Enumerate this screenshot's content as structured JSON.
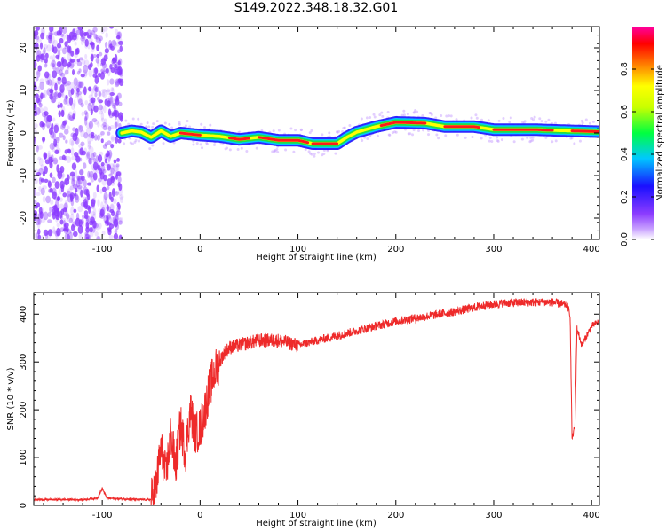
{
  "title": "S149.2022.348.18.32.G01",
  "colors": {
    "snr_line": "#ee2a2a",
    "spectrum_peak": "#ff1a1a",
    "spectrum_core": "#22e040",
    "spectrum_low": "#1a10ff",
    "noise": "#8c3cff",
    "axis": "#000000"
  },
  "chart_data": [
    {
      "type": "heatmap",
      "name": "spectrogram",
      "xlabel": "Height of straight line (km)",
      "ylabel": "Frequency (Hz)",
      "xlim": [
        -170,
        408
      ],
      "ylim": [
        -25,
        25
      ],
      "xticks": [
        -100,
        0,
        100,
        200,
        300,
        400
      ],
      "yticks": [
        -20,
        -10,
        0,
        10,
        20
      ],
      "colorbar": {
        "label": "Normalized spectral amplitude",
        "range": [
          0.0,
          1.0
        ],
        "ticks": [
          0.0,
          0.2,
          0.4,
          0.6,
          0.8
        ],
        "colormap": [
          "#ffffff",
          "#8c3cff",
          "#1a10ff",
          "#00c8ff",
          "#00ff40",
          "#c8ff00",
          "#ffff00",
          "#ff8000",
          "#ff0000",
          "#ff00a0"
        ]
      },
      "noise_region_x": [
        -170,
        -80
      ],
      "signal_track": {
        "x": [
          -80,
          -70,
          -60,
          -50,
          -40,
          -30,
          -20,
          0,
          20,
          40,
          60,
          80,
          100,
          115,
          140,
          150,
          160,
          180,
          200,
          230,
          250,
          280,
          300,
          340,
          380,
          408
        ],
        "freq": [
          0.0,
          0.5,
          0.2,
          -1.0,
          0.5,
          -0.8,
          0.0,
          -0.5,
          -0.8,
          -1.5,
          -1.0,
          -1.7,
          -1.7,
          -2.5,
          -2.5,
          -1.0,
          0.2,
          1.5,
          2.5,
          2.3,
          1.5,
          1.5,
          0.8,
          0.8,
          0.5,
          0.3
        ]
      }
    },
    {
      "type": "line",
      "name": "snr",
      "xlabel": "Height of straight line (km)",
      "ylabel": "SNR (10 * v/v)",
      "xlim": [
        -170,
        408
      ],
      "ylim": [
        0,
        445
      ],
      "xticks": [
        -100,
        0,
        100,
        200,
        300,
        400
      ],
      "yticks": [
        0,
        100,
        200,
        300,
        400
      ],
      "series": [
        {
          "x": [
            -170,
            -120,
            -105,
            -100,
            -95,
            -60,
            -50,
            -45,
            -40,
            -35,
            -30,
            -25,
            -20,
            -15,
            -10,
            -5,
            0,
            5,
            10,
            15,
            20,
            25,
            30,
            40,
            60,
            80,
            100,
            130,
            160,
            200,
            230,
            260,
            290,
            310,
            340,
            360,
            375,
            378,
            380,
            383,
            385,
            390,
            400,
            408
          ],
          "y": [
            12,
            12,
            15,
            35,
            15,
            12,
            12,
            40,
            120,
            60,
            150,
            80,
            170,
            110,
            200,
            150,
            160,
            200,
            250,
            280,
            300,
            320,
            330,
            335,
            345,
            345,
            335,
            350,
            365,
            385,
            395,
            405,
            418,
            423,
            425,
            425,
            418,
            400,
            140,
            165,
            370,
            335,
            375,
            385
          ]
        }
      ]
    }
  ]
}
